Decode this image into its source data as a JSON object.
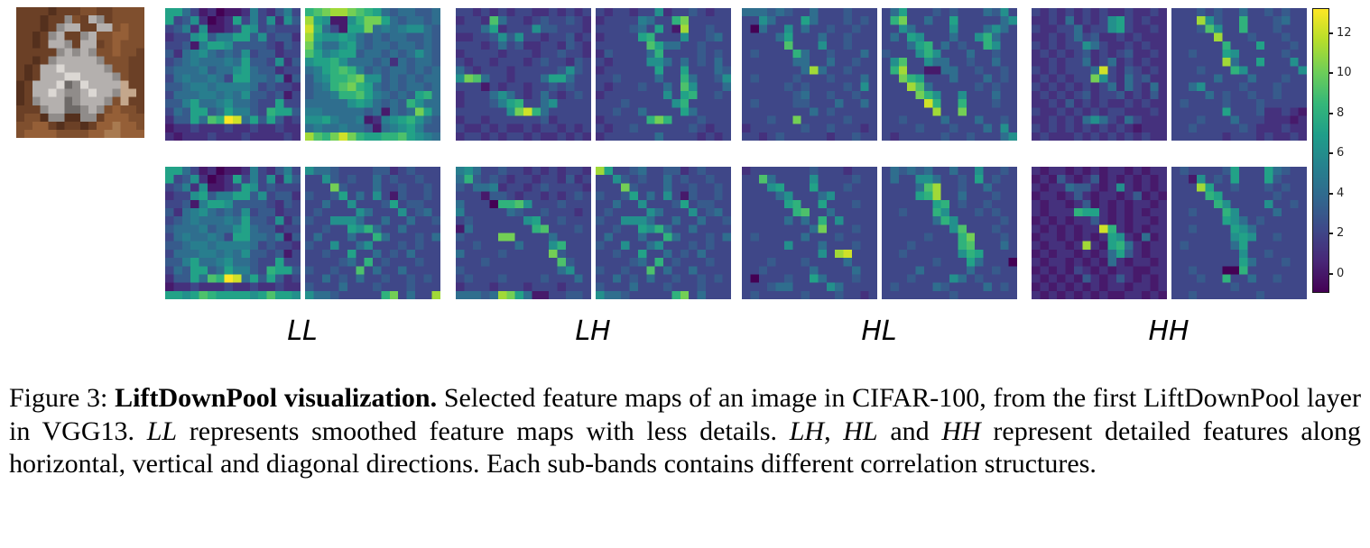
{
  "figure": {
    "input_image": {
      "name": "CIFAR-100 input image (rabbit on wooden floor)",
      "palette": {
        "0": "#3a2217",
        "1": "#54301d",
        "2": "#6b4026",
        "3": "#7f4f2e",
        "4": "#955f37",
        "5": "#a87a50",
        "6": "#c9c5c1",
        "7": "#b4b0ae",
        "8": "#908c8a",
        "9": "#6e6a68",
        "a": "#dcd8d4",
        "b": "#c4a78c"
      },
      "grid": [
        "2222122233223333",
        "2221228327823333",
        "2221287722773433",
        "2212872287334433",
        "2212778277234333",
        "2222287878334332",
        "2212877777833322",
        "21277a7777783322",
        "212777aa77778322",
        "12777a98a7777b22",
        "1277a7887a778bb2",
        "1287779877783b22",
        "2228779987834332",
        "2331881188244433",
        "3344212212445443",
        "3444433334455444"
      ]
    },
    "colormap": {
      "name": "viridis",
      "stops": [
        "#440154",
        "#482878",
        "#3e4989",
        "#31688e",
        "#26828e",
        "#1f9e89",
        "#35b779",
        "#6ece58",
        "#b5de2b",
        "#fde725"
      ],
      "cell_value_note": "panel grids: hex char 0-e, value = char - 1 (range -1 to 13)"
    },
    "colorbar": {
      "vmin": -0.9,
      "vmax": 13.2,
      "ticks": [
        12,
        10,
        8,
        6,
        4,
        2,
        0
      ]
    },
    "groups": [
      {
        "label": "LL",
        "description": "smoothed feature maps with less details",
        "panels": [
          [
            "8853120112632463",
            "8347201283637274",
            "3462711238734333",
            "2337846688473442",
            "3341688744443243",
            "4256754547344233",
            "3456555658443724",
            "4555645578544233",
            "3565565388554614",
            "4456656666534332",
            "3555665657443413",
            "4468556755433833",
            "3548845866439884",
            "24485a9ed5848423",
            "1223222322322322",
            "2122232223222232"
          ],
          [
            "9abccba985455445",
            "c871179bb8545545",
            "d953188b56567754",
            "c877875454554454",
            "b755785455455454",
            "a867884554545754",
            "7889755545254554",
            "5689a96454554545",
            "46799ab774545455",
            "4569ab9854545545",
            "455699a865454895",
            "5555578754549755",
            "6655555451545b85",
            "7786556126789754",
            "5655655415678644",
            "ca9bdb98899a8765"
          ],
          [
            "8853120112632463",
            "8347201283637274",
            "3462711238734333",
            "2337846688473442",
            "3341688744443243",
            "4256754547344233",
            "3456555658443724",
            "4555645578544233",
            "3565565388554614",
            "4456656666534332",
            "3555665657443413",
            "4468556755433833",
            "3548845866439884",
            "24485a9ed5848423",
            "1223222322322322",
            "8878a9888878a887"
          ],
          [
            "7554333344234333",
            "3374343353433433",
            "333b433353343343",
            "4334835373143343",
            "3353373334834433",
            "3433337533373453",
            "4337775335335334",
            "3343387953353333",
            "3533353395333435",
            "4337335733343433",
            "3343383353435333",
            "3333453934333433",
            "433433a353353333",
            "3353435334334343",
            "4333533343334333",
            "7554333339b3533c"
          ]
        ]
      },
      {
        "label": "LH",
        "description": "detailed features along horizontal direction",
        "panels": [
          [
            "3323232332232323",
            "2332a53323433432",
            "3335823337443332",
            "2233474733233423",
            "3332353422332432",
            "2333323332334332",
            "3233233323433243",
            "5323332333334743",
            "7ba5332333588533",
            "3331323323343433",
            "2333575323532343",
            "2333468933573333",
            "3333337bd9533333",
            "2332333333423333",
            "3223232232332323",
            "2332323323223232"
          ],
          [
            "3233233723343233",
            "2333365339b33333",
            "3333453831c33433",
            "2333389333733453",
            "333333a855334333",
            "2433335933334343",
            "3233337753534353",
            "2333333833833354",
            "3343333533953347",
            "3233343353a73335",
            "2333333373893343",
            "3334333337933333",
            "3343353333853333",
            "2333339b93334333",
            "3233433333343233",
            "2333333533332323"
          ],
          [
            "6753343323232332",
            "5943432332332423",
            "4355623323433332",
            "3331443233232343",
            "5333099a73334333",
            "6333335433433323",
            "3433333378334333",
            "1533333339a33343",
            "43333bb333353333",
            "3343333533379333",
            "53333433333b4333",
            "333433333333a433",
            "4333333333335733",
            "3433343333433353",
            "2333233323332333",
            "55545cb851133443"
          ],
          [
            "c833453344234333",
            "3374343353433433",
            "333b433353343343",
            "4334835373143343",
            "3353373334834433",
            "3433337533373453",
            "4337775335335334",
            "3343387953353333",
            "3533353395333435",
            "4337335733343433",
            "3343383353435333",
            "3333453934333433",
            "433433a353353333",
            "3353435334334343",
            "4333533343334333",
            "7554333339b35333"
          ]
        ]
      },
      {
        "label": "HL",
        "description": "detailed features along vertical direction",
        "panels": [
          [
            "5554543353334333",
            "3375333853334343",
            "3053373533433433",
            "3333583335334333",
            "33333a3337334333",
            "3433339533433353",
            "3333335533533433",
            "33333335c5334333",
            "3433334333433353",
            "3333343433334373",
            "3333334533433433",
            "3433334433353353",
            "3333333353433333",
            "333433b333334333",
            "2333333433433323",
            "3323433333233433"
          ],
          [
            "3583334343335473",
            "39b3353383333357",
            "3375333373335753",
            "3538733353379533",
            "3335893534339733",
            "4333797333533433",
            "37a3375533433533",
            "39c3311553343343",
            "33b9833353335343",
            "333ca53333343433",
            "3333b97337333533",
            "33333d9339333433",
            "333333c33b333333",
            "3343333533353343",
            "3333433343335373",
            "3233333433433357"
          ],
          [
            "2333333343332333",
            "33a5333373333433",
            "3337833383334333",
            "3333573335733333",
            "3333389338333433",
            "3333339a33533333",
            "3333353539373333",
            "333333335b333433",
            "3433333533343333",
            "3333373335333433",
            "33333333373cd333",
            "3334333433335333",
            "3343333353333533",
            "3033343385333433",
            "3334553333753333",
            "3433333433343323"
          ],
          [
            "3545453353373343",
            "3533775334383433",
            "33335ac334335333",
            "333389c335333433",
            "3333338934334333",
            "3343339733343433",
            "3333335973333343",
            "333333337a333433",
            "3333343339b33343",
            "3334333339a33353",
            "3343333337983333",
            "3333334333853330",
            "3333533333533433",
            "3334333375343333",
            "3433335433335343",
            "3333333343333333"
          ]
        ]
      },
      {
        "label": "HH",
        "description": "detailed features along diagonal direction",
        "panels": [
          [
            "3232323232232232",
            "2232523237832322",
            "3223352337832232",
            "2232353422323222",
            "3232337532232322",
            "2323234232342232",
            "2232335235232322",
            "32323335d3243232",
            "2323233b73253422",
            "3232323235253252",
            "2323234233423242",
            "2232423232232322",
            "3223232323322232",
            "2232325753253222",
            "3232323232321222",
            "2322232323232322"
          ],
          [
            "3334343353343433",
            "333c743393334533",
            "3334a73393334333",
            "33333c3334333433",
            "3333339333833343",
            "3343338733333433",
            "333333c533833373",
            "3334333973333337",
            "3333353335333433",
            "3357333343334333",
            "3333534334334333",
            "3433334333433333",
            "3333338333422321",
            "3334333533322212",
            "3343333343222322",
            "3333332333232232"
          ],
          [
            "2122121212212122",
            "1214212412121212",
            "2122544212721212",
            "1221242122124121",
            "2122124121212212",
            "2122298821212122",
            "1212122421212212",
            "21212122d9212122",
            "1221212128721512",
            "212212c218952122",
            "1212212125842122",
            "2122121215212212",
            "1212132121221122",
            "2121214212421212",
            "1212121212212212",
            "2121212121122121"
          ],
          [
            "3433334833385433",
            "3317343833384333",
            "333c833433343433",
            "3333983333334333",
            "3333397333373343",
            "3343339733335333",
            "3333338753433333",
            "3343333875333333",
            "3333333787334333",
            "3433333583333333",
            "3333333373343333",
            "3333333385333433",
            "3343330093333333",
            "3334339335334333",
            "3333333433333333",
            "3343333333433333"
          ]
        ]
      }
    ]
  },
  "caption": {
    "segments": [
      {
        "text": "Figure 3: ",
        "style": "normal"
      },
      {
        "text": "LiftDownPool visualization.",
        "style": "bold"
      },
      {
        "text": " Selected feature maps of an image in CIFAR-100, from the first LiftDownPool layer in VGG13. ",
        "style": "normal"
      },
      {
        "text": "LL",
        "style": "italic"
      },
      {
        "text": " represents smoothed feature maps with less details. ",
        "style": "normal"
      },
      {
        "text": "LH",
        "style": "italic"
      },
      {
        "text": ", ",
        "style": "normal"
      },
      {
        "text": "HL",
        "style": "italic"
      },
      {
        "text": " and ",
        "style": "normal"
      },
      {
        "text": "HH",
        "style": "italic"
      },
      {
        "text": " represent detailed features along horizontal, vertical and diagonal directions. Each sub-bands contains different correlation structures.",
        "style": "normal"
      }
    ]
  }
}
